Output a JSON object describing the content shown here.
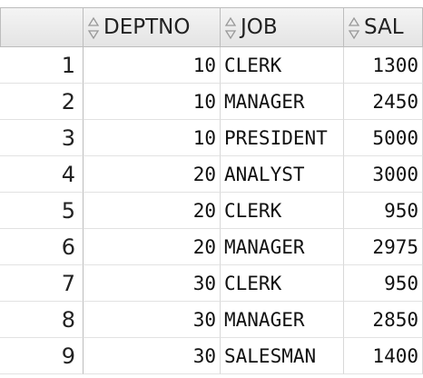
{
  "table": {
    "columns": [
      "DEPTNO",
      "JOB",
      "SAL"
    ],
    "row_numbers": [
      1,
      2,
      3,
      4,
      5,
      6,
      7,
      8,
      9
    ],
    "rows": [
      [
        10,
        "CLERK",
        1300
      ],
      [
        10,
        "MANAGER",
        2450
      ],
      [
        10,
        "PRESIDENT",
        5000
      ],
      [
        20,
        "ANALYST",
        3000
      ],
      [
        20,
        "CLERK",
        950
      ],
      [
        20,
        "MANAGER",
        2975
      ],
      [
        30,
        "CLERK",
        950
      ],
      [
        30,
        "MANAGER",
        2850
      ],
      [
        30,
        "SALESMAN",
        1400
      ]
    ]
  }
}
